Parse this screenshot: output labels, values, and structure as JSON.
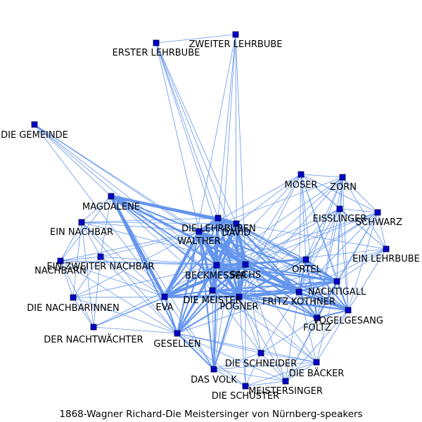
{
  "caption": "1868-Wagner Richard-Die Meistersinger von Nürnberg-speakers",
  "colors": {
    "edge": "#6495ed",
    "node_fill": "#0000cc",
    "node_stroke": "#000033"
  },
  "nodes": [
    {
      "id": "zweiter_lehrbube",
      "label": "ZWEITER LEHRBUBE"
    },
    {
      "id": "erster_lehrbube",
      "label": "ERSTER LEHRBUBE"
    },
    {
      "id": "die_gemeinde",
      "label": "DIE GEMEINDE"
    },
    {
      "id": "moser",
      "label": "MOSER"
    },
    {
      "id": "zorn",
      "label": "ZORN"
    },
    {
      "id": "magdalene",
      "label": "MAGDALENE"
    },
    {
      "id": "eisslinger",
      "label": "EISSLINGER"
    },
    {
      "id": "schwarz",
      "label": "SCHWARZ"
    },
    {
      "id": "ein_nachbar",
      "label": "EIN NACHBAR"
    },
    {
      "id": "die_lehrbuben",
      "label": "DIE LEHRBUBEN"
    },
    {
      "id": "david",
      "label": "DAVID"
    },
    {
      "id": "walther",
      "label": "WALTHER"
    },
    {
      "id": "ein_lehrbube",
      "label": "EIN LEHRBUBE"
    },
    {
      "id": "ein_zweiter_nachbar",
      "label": "EIN ZWEITER NACHBAR"
    },
    {
      "id": "nachbarn",
      "label": "NACHBARN"
    },
    {
      "id": "ortel",
      "label": "ORTEL"
    },
    {
      "id": "beckmesser",
      "label": "BECKMESSER"
    },
    {
      "id": "sachs",
      "label": "SACHS"
    },
    {
      "id": "nachtigall",
      "label": "NACHTIGALL"
    },
    {
      "id": "die_meister",
      "label": "DIE MEISTER"
    },
    {
      "id": "fritz_kothner",
      "label": "FRITZ KOTHNER"
    },
    {
      "id": "die_nachbarinnen",
      "label": "DIE NACHBARINNEN"
    },
    {
      "id": "eva",
      "label": "EVA"
    },
    {
      "id": "pogner",
      "label": "POGNER"
    },
    {
      "id": "vogelgesang",
      "label": "VOGELGESANG"
    },
    {
      "id": "foltz",
      "label": "FOLTZ"
    },
    {
      "id": "der_nachtwaechter",
      "label": "DER NACHTWÄCHTER"
    },
    {
      "id": "gesellen",
      "label": "GESELLEN"
    },
    {
      "id": "die_schneider",
      "label": "DIE SCHNEIDER"
    },
    {
      "id": "die_baecker",
      "label": "DIE BÄCKER"
    },
    {
      "id": "das_volk",
      "label": "DAS VOLK"
    },
    {
      "id": "meistersinger",
      "label": "MEISTERSINGER"
    },
    {
      "id": "die_schuster",
      "label": "DIE SCHUSTER"
    }
  ],
  "edges": [
    [
      "erster_lehrbube",
      "zweiter_lehrbube",
      1
    ],
    [
      "erster_lehrbube",
      "die_lehrbuben",
      1
    ],
    [
      "erster_lehrbube",
      "david",
      1
    ],
    [
      "erster_lehrbube",
      "sachs",
      1
    ],
    [
      "erster_lehrbube",
      "pogner",
      1
    ],
    [
      "erster_lehrbube",
      "walther",
      1
    ],
    [
      "zweiter_lehrbube",
      "die_lehrbuben",
      1
    ],
    [
      "zweiter_lehrbube",
      "david",
      1
    ],
    [
      "zweiter_lehrbube",
      "sachs",
      1
    ],
    [
      "zweiter_lehrbube",
      "das_volk",
      1
    ],
    [
      "zweiter_lehrbube",
      "gesellen",
      1
    ],
    [
      "die_gemeinde",
      "walther",
      1
    ],
    [
      "die_gemeinde",
      "sachs",
      1
    ],
    [
      "die_gemeinde",
      "magdalene",
      1
    ],
    [
      "die_gemeinde",
      "eva",
      1
    ],
    [
      "die_gemeinde",
      "pogner",
      1
    ],
    [
      "die_gemeinde",
      "beckmesser",
      1
    ],
    [
      "moser",
      "zorn",
      1
    ],
    [
      "moser",
      "eisslinger",
      1
    ],
    [
      "moser",
      "schwarz",
      1
    ],
    [
      "moser",
      "ortel",
      1
    ],
    [
      "moser",
      "nachtigall",
      1
    ],
    [
      "moser",
      "fritz_kothner",
      1
    ],
    [
      "moser",
      "vogelgesang",
      1
    ],
    [
      "moser",
      "foltz",
      1
    ],
    [
      "moser",
      "pogner",
      1
    ],
    [
      "moser",
      "sachs",
      1
    ],
    [
      "moser",
      "beckmesser",
      1
    ],
    [
      "moser",
      "walther",
      1
    ],
    [
      "moser",
      "ein_lehrbube",
      1
    ],
    [
      "moser",
      "david",
      1
    ],
    [
      "zorn",
      "eisslinger",
      1
    ],
    [
      "zorn",
      "schwarz",
      1
    ],
    [
      "zorn",
      "ortel",
      1
    ],
    [
      "zorn",
      "nachtigall",
      1
    ],
    [
      "zorn",
      "fritz_kothner",
      1
    ],
    [
      "zorn",
      "vogelgesang",
      1
    ],
    [
      "zorn",
      "foltz",
      1
    ],
    [
      "zorn",
      "pogner",
      1
    ],
    [
      "zorn",
      "sachs",
      1
    ],
    [
      "zorn",
      "beckmesser",
      1
    ],
    [
      "zorn",
      "ein_lehrbube",
      1
    ],
    [
      "zorn",
      "walther",
      1
    ],
    [
      "eisslinger",
      "schwarz",
      1
    ],
    [
      "eisslinger",
      "ortel",
      1
    ],
    [
      "eisslinger",
      "nachtigall",
      1
    ],
    [
      "eisslinger",
      "fritz_kothner",
      1
    ],
    [
      "eisslinger",
      "vogelgesang",
      1
    ],
    [
      "eisslinger",
      "foltz",
      1
    ],
    [
      "eisslinger",
      "pogner",
      1
    ],
    [
      "eisslinger",
      "sachs",
      1
    ],
    [
      "eisslinger",
      "beckmesser",
      1
    ],
    [
      "eisslinger",
      "ein_lehrbube",
      1
    ],
    [
      "schwarz",
      "ortel",
      1
    ],
    [
      "schwarz",
      "nachtigall",
      1
    ],
    [
      "schwarz",
      "fritz_kothner",
      1
    ],
    [
      "schwarz",
      "vogelgesang",
      1
    ],
    [
      "schwarz",
      "foltz",
      1
    ],
    [
      "schwarz",
      "pogner",
      1
    ],
    [
      "schwarz",
      "sachs",
      1
    ],
    [
      "schwarz",
      "beckmesser",
      1
    ],
    [
      "schwarz",
      "ein_lehrbube",
      1
    ],
    [
      "ein_lehrbube",
      "nachtigall",
      1
    ],
    [
      "ein_lehrbube",
      "fritz_kothner",
      1
    ],
    [
      "ein_lehrbube",
      "david",
      1
    ],
    [
      "ein_lehrbube",
      "pogner",
      1
    ],
    [
      "ein_lehrbube",
      "sachs",
      1
    ],
    [
      "ein_lehrbube",
      "vogelgesang",
      1
    ],
    [
      "magdalene",
      "david",
      4
    ],
    [
      "magdalene",
      "eva",
      4
    ],
    [
      "magdalene",
      "sachs",
      3
    ],
    [
      "magdalene",
      "walther",
      2
    ],
    [
      "magdalene",
      "die_lehrbuben",
      2
    ],
    [
      "magdalene",
      "pogner",
      2
    ],
    [
      "magdalene",
      "beckmesser",
      2
    ],
    [
      "magdalene",
      "gesellen",
      2
    ],
    [
      "magdalene",
      "ein_nachbar",
      1
    ],
    [
      "magdalene",
      "nachbarn",
      1
    ],
    [
      "magdalene",
      "die_meister",
      1
    ],
    [
      "magdalene",
      "ein_zweiter_nachbar",
      1
    ],
    [
      "magdalene",
      "das_volk",
      1
    ],
    [
      "die_lehrbuben",
      "david",
      4
    ],
    [
      "die_lehrbuben",
      "walther",
      3
    ],
    [
      "die_lehrbuben",
      "sachs",
      3
    ],
    [
      "die_lehrbuben",
      "pogner",
      3
    ],
    [
      "die_lehrbuben",
      "beckmesser",
      3
    ],
    [
      "die_lehrbuben",
      "eva",
      2
    ],
    [
      "die_lehrbuben",
      "die_meister",
      3
    ],
    [
      "die_lehrbuben",
      "gesellen",
      2
    ],
    [
      "die_lehrbuben",
      "fritz_kothner",
      2
    ],
    [
      "die_lehrbuben",
      "nachtigall",
      1
    ],
    [
      "die_lehrbuben",
      "vogelgesang",
      1
    ],
    [
      "die_lehrbuben",
      "ortel",
      1
    ],
    [
      "die_lehrbuben",
      "das_volk",
      1
    ],
    [
      "die_lehrbuben",
      "ein_nachbar",
      1
    ],
    [
      "david",
      "walther",
      3
    ],
    [
      "david",
      "sachs",
      4
    ],
    [
      "david",
      "beckmesser",
      3
    ],
    [
      "david",
      "pogner",
      3
    ],
    [
      "david",
      "eva",
      2
    ],
    [
      "david",
      "die_meister",
      3
    ],
    [
      "david",
      "fritz_kothner",
      2
    ],
    [
      "david",
      "gesellen",
      2
    ],
    [
      "david",
      "nachtigall",
      2
    ],
    [
      "david",
      "vogelgesang",
      1
    ],
    [
      "david",
      "ortel",
      1
    ],
    [
      "david",
      "foltz",
      1
    ],
    [
      "david",
      "das_volk",
      1
    ],
    [
      "david",
      "ein_nachbar",
      1
    ],
    [
      "david",
      "nachbarn",
      1
    ],
    [
      "david",
      "ein_zweiter_nachbar",
      1
    ],
    [
      "walther",
      "sachs",
      4
    ],
    [
      "walther",
      "eva",
      4
    ],
    [
      "walther",
      "beckmesser",
      4
    ],
    [
      "walther",
      "pogner",
      4
    ],
    [
      "walther",
      "die_meister",
      3
    ],
    [
      "walther",
      "fritz_kothner",
      3
    ],
    [
      "walther",
      "nachtigall",
      2
    ],
    [
      "walther",
      "vogelgesang",
      2
    ],
    [
      "walther",
      "ortel",
      1
    ],
    [
      "walther",
      "foltz",
      1
    ],
    [
      "walther",
      "gesellen",
      2
    ],
    [
      "walther",
      "das_volk",
      2
    ],
    [
      "walther",
      "die_nachbarinnen",
      1
    ],
    [
      "walther",
      "ein_nachbar",
      1
    ],
    [
      "sachs",
      "beckmesser",
      4
    ],
    [
      "sachs",
      "eva",
      4
    ],
    [
      "sachs",
      "pogner",
      4
    ],
    [
      "sachs",
      "die_meister",
      3
    ],
    [
      "sachs",
      "fritz_kothner",
      3
    ],
    [
      "sachs",
      "nachtigall",
      2
    ],
    [
      "sachs",
      "vogelgesang",
      2
    ],
    [
      "sachs",
      "ortel",
      2
    ],
    [
      "sachs",
      "foltz",
      2
    ],
    [
      "sachs",
      "gesellen",
      2
    ],
    [
      "sachs",
      "das_volk",
      2
    ],
    [
      "sachs",
      "die_schneider",
      1
    ],
    [
      "sachs",
      "die_baecker",
      1
    ],
    [
      "sachs",
      "die_schuster",
      1
    ],
    [
      "sachs",
      "meistersinger",
      1
    ],
    [
      "sachs",
      "der_nachtwaechter",
      1
    ],
    [
      "sachs",
      "ein_nachbar",
      1
    ],
    [
      "sachs",
      "nachbarn",
      1
    ],
    [
      "beckmesser",
      "eva",
      3
    ],
    [
      "beckmesser",
      "pogner",
      3
    ],
    [
      "beckmesser",
      "die_meister",
      3
    ],
    [
      "beckmesser",
      "fritz_kothner",
      3
    ],
    [
      "beckmesser",
      "nachtigall",
      2
    ],
    [
      "beckmesser",
      "vogelgesang",
      2
    ],
    [
      "beckmesser",
      "ortel",
      2
    ],
    [
      "beckmesser",
      "foltz",
      2
    ],
    [
      "beckmesser",
      "gesellen",
      2
    ],
    [
      "beckmesser",
      "das_volk",
      2
    ],
    [
      "beckmesser",
      "der_nachtwaechter",
      1
    ],
    [
      "beckmesser",
      "die_nachbarinnen",
      1
    ],
    [
      "beckmesser",
      "ein_zweiter_nachbar",
      1
    ],
    [
      "beckmesser",
      "nachbarn",
      1
    ],
    [
      "eva",
      "pogner",
      3
    ],
    [
      "eva",
      "die_meister",
      2
    ],
    [
      "eva",
      "gesellen",
      2
    ],
    [
      "eva",
      "das_volk",
      1
    ],
    [
      "eva",
      "der_nachtwaechter",
      1
    ],
    [
      "eva",
      "die_nachbarinnen",
      1
    ],
    [
      "eva",
      "ein_nachbar",
      1
    ],
    [
      "eva",
      "ein_zweiter_nachbar",
      1
    ],
    [
      "eva",
      "nachbarn",
      1
    ],
    [
      "eva",
      "fritz_kothner",
      1
    ],
    [
      "pogner",
      "die_meister",
      3
    ],
    [
      "pogner",
      "fritz_kothner",
      3
    ],
    [
      "pogner",
      "nachtigall",
      2
    ],
    [
      "pogner",
      "vogelgesang",
      2
    ],
    [
      "pogner",
      "ortel",
      2
    ],
    [
      "pogner",
      "foltz",
      2
    ],
    [
      "pogner",
      "gesellen",
      2
    ],
    [
      "pogner",
      "das_volk",
      1
    ],
    [
      "pogner",
      "die_schneider",
      1
    ],
    [
      "pogner",
      "die_baecker",
      1
    ],
    [
      "pogner",
      "die_schuster",
      1
    ],
    [
      "pogner",
      "meistersinger",
      1
    ],
    [
      "die_meister",
      "fritz_kothner",
      2
    ],
    [
      "die_meister",
      "nachtigall",
      2
    ],
    [
      "die_meister",
      "vogelgesang",
      2
    ],
    [
      "die_meister",
      "ortel",
      1
    ],
    [
      "die_meister",
      "foltz",
      1
    ],
    [
      "die_meister",
      "gesellen",
      2
    ],
    [
      "die_meister",
      "das_volk",
      1
    ],
    [
      "die_meister",
      "die_schneider",
      1
    ],
    [
      "die_meister",
      "die_baecker",
      1
    ],
    [
      "fritz_kothner",
      "nachtigall",
      2
    ],
    [
      "fritz_kothner",
      "vogelgesang",
      2
    ],
    [
      "fritz_kothner",
      "ortel",
      2
    ],
    [
      "fritz_kothner",
      "foltz",
      2
    ],
    [
      "fritz_kothner",
      "gesellen",
      1
    ],
    [
      "fritz_kothner",
      "die_schneider",
      1
    ],
    [
      "fritz_kothner",
      "die_baecker",
      1
    ],
    [
      "fritz_kothner",
      "meistersinger",
      1
    ],
    [
      "nachtigall",
      "vogelgesang",
      2
    ],
    [
      "nachtigall",
      "ortel",
      2
    ],
    [
      "nachtigall",
      "foltz",
      2
    ],
    [
      "nachtigall",
      "die_baecker",
      1
    ],
    [
      "nachtigall",
      "meistersinger",
      1
    ],
    [
      "ortel",
      "vogelgesang",
      2
    ],
    [
      "ortel",
      "foltz",
      2
    ],
    [
      "vogelgesang",
      "foltz",
      2
    ],
    [
      "vogelgesang",
      "die_baecker",
      1
    ],
    [
      "vogelgesang",
      "meistersinger",
      1
    ],
    [
      "foltz",
      "meistersinger",
      1
    ],
    [
      "foltz",
      "die_schneider",
      1
    ],
    [
      "ein_nachbar",
      "ein_zweiter_nachbar",
      1
    ],
    [
      "ein_nachbar",
      "nachbarn",
      1
    ],
    [
      "ein_nachbar",
      "die_nachbarinnen",
      1
    ],
    [
      "ein_nachbar",
      "der_nachtwaechter",
      1
    ],
    [
      "ein_nachbar",
      "gesellen",
      1
    ],
    [
      "ein_zweiter_nachbar",
      "nachbarn",
      1
    ],
    [
      "ein_zweiter_nachbar",
      "die_nachbarinnen",
      1
    ],
    [
      "ein_zweiter_nachbar",
      "der_nachtwaechter",
      1
    ],
    [
      "ein_zweiter_nachbar",
      "gesellen",
      1
    ],
    [
      "nachbarn",
      "die_nachbarinnen",
      1
    ],
    [
      "nachbarn",
      "der_nachtwaechter",
      1
    ],
    [
      "nachbarn",
      "gesellen",
      1
    ],
    [
      "die_nachbarinnen",
      "der_nachtwaechter",
      1
    ],
    [
      "die_nachbarinnen",
      "gesellen",
      1
    ],
    [
      "der_nachtwaechter",
      "gesellen",
      1
    ],
    [
      "gesellen",
      "das_volk",
      2
    ],
    [
      "gesellen",
      "die_schneider",
      1
    ],
    [
      "gesellen",
      "die_schuster",
      1
    ],
    [
      "gesellen",
      "die_baecker",
      1
    ],
    [
      "gesellen",
      "meistersinger",
      1
    ],
    [
      "das_volk",
      "die_schneider",
      1
    ],
    [
      "das_volk",
      "die_schuster",
      1
    ],
    [
      "das_volk",
      "die_baecker",
      1
    ],
    [
      "das_volk",
      "meistersinger",
      1
    ],
    [
      "die_schneider",
      "die_schuster",
      1
    ],
    [
      "die_schneider",
      "die_baecker",
      1
    ],
    [
      "die_schneider",
      "meistersinger",
      1
    ],
    [
      "die_schuster",
      "die_baecker",
      1
    ],
    [
      "die_schuster",
      "meistersinger",
      1
    ],
    [
      "die_baecker",
      "meistersinger",
      1
    ]
  ]
}
